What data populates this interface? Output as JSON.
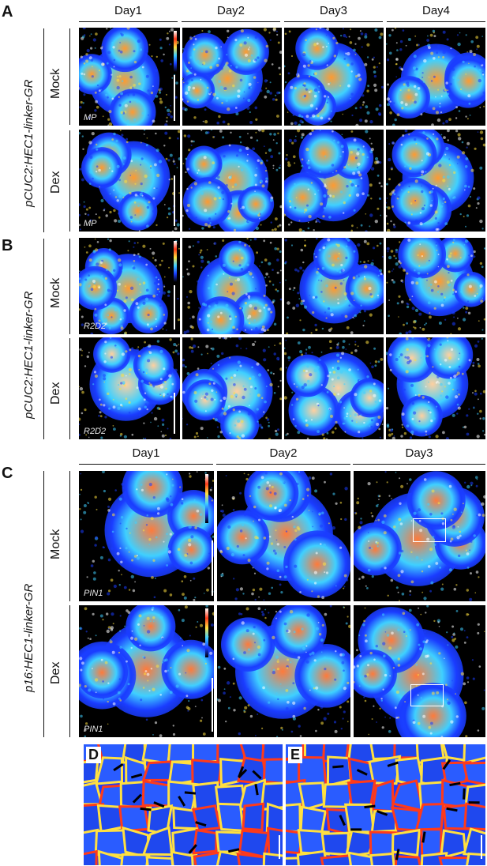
{
  "panels": {
    "A": {
      "letter": "A",
      "genotype": "pCUC2:HEC1-linker-GR",
      "days": [
        "Day1",
        "Day2",
        "Day3",
        "Day4"
      ],
      "rows": [
        {
          "condition": "Mock",
          "marker": "MP"
        },
        {
          "condition": "Dex",
          "marker": "MP"
        }
      ]
    },
    "B": {
      "letter": "B",
      "genotype": "pCUC2:HEC1-linker-GR",
      "days": [
        "Day1",
        "Day2",
        "Day3",
        "Day4"
      ],
      "rows": [
        {
          "condition": "Mock",
          "marker": "R2D2"
        },
        {
          "condition": "Dex",
          "marker": "R2D2"
        }
      ]
    },
    "C": {
      "letter": "C",
      "genotype": "p16:HEC1-linker-GR",
      "days": [
        "Day1",
        "Day2",
        "Day3"
      ],
      "rows": [
        {
          "condition": "Mock",
          "marker": "PIN1"
        },
        {
          "condition": "Dex",
          "marker": "PIN1"
        }
      ]
    },
    "D": {
      "letter": "D"
    },
    "E": {
      "letter": "E"
    }
  },
  "colors": {
    "background": "#000000",
    "cells_low": "#1a3cff",
    "cells_mid": "#3fd0ff",
    "cells_high": "#ff3a1a",
    "highlight": "#ffe040"
  }
}
